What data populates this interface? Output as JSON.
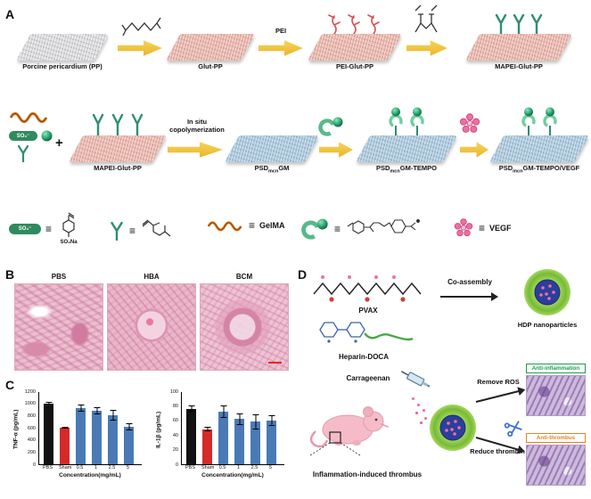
{
  "panels": {
    "A": "A",
    "B": "B",
    "C": "C",
    "D": "D"
  },
  "panelA": {
    "so3_label": "SO₃⁻",
    "plus": "+",
    "row1_steps": [
      {
        "label": "Porcine pericardium (PP)"
      },
      {
        "label": "Glut-PP"
      },
      {
        "label": "PEI-Glut-PP"
      },
      {
        "label": "MAPEI-Glut-PP"
      }
    ],
    "arrow_pei_label": "PEI",
    "insitu_line1": "In situ",
    "insitu_line2": "copolymerization",
    "row2_steps": [
      {
        "label": "MAPEI-Glut-PP"
      },
      {
        "base": "PSD",
        "sub": "mcn",
        "rest": "GM"
      },
      {
        "base": "PSD",
        "sub": "mcn",
        "rest": "GM-TEMPO"
      },
      {
        "base": "PSD",
        "sub": "mcn",
        "rest": "GM-TEMPO/VEGF"
      }
    ],
    "legend": {
      "equiv": "≡",
      "so3na": "SO₃Na",
      "gelma": "GelMA",
      "vegf": "VEGF"
    }
  },
  "panelB": {
    "labels": [
      "PBS",
      "HBA",
      "BCM"
    ]
  },
  "chart_data": [
    {
      "type": "bar",
      "categories": [
        "PBS",
        "Sham",
        "0.5",
        "1",
        "2.5",
        "5"
      ],
      "values": [
        1000,
        600,
        920,
        880,
        800,
        620
      ],
      "errors": [
        25,
        20,
        60,
        55,
        90,
        60
      ],
      "colors": [
        "#111111",
        "#d42a2a",
        "#4a7ab5",
        "#4a7ab5",
        "#4a7ab5",
        "#4a7ab5"
      ],
      "title": "",
      "xlabel": "Concentration(mg/mL)",
      "ylabel": "TNF-α (pg/mL)",
      "ylim": [
        0,
        1200
      ],
      "yticks": [
        0,
        200,
        400,
        600,
        800,
        1000,
        1200
      ]
    },
    {
      "type": "bar",
      "categories": [
        "PBS",
        "Sham",
        "0.5",
        "1",
        "2.5",
        "5"
      ],
      "values": [
        76,
        48,
        72,
        62,
        58,
        60
      ],
      "errors": [
        4,
        3,
        9,
        8,
        10,
        7
      ],
      "colors": [
        "#111111",
        "#d42a2a",
        "#4a7ab5",
        "#4a7ab5",
        "#4a7ab5",
        "#4a7ab5"
      ],
      "title": "",
      "xlabel": "Concentration(mg/mL)",
      "ylabel": "IL-1β (pg/mL)",
      "ylim": [
        0,
        100
      ],
      "yticks": [
        0,
        20,
        40,
        60,
        80,
        100
      ]
    }
  ],
  "panelD": {
    "pvax_label": "PVAX",
    "heparin_label": "Heparin-DOCA",
    "coassembly_label": "Co-assembly",
    "hdp_label": "HDP nanoparticles",
    "carrageenan_label": "Carrageenan",
    "thrombus_label": "Inflammation-induced thrombus",
    "remove_ros_label": "Remove ROS",
    "reduce_thrombin_label": "Reduce thrombin",
    "anti_inflammation_label": "Anti-inflammation",
    "anti_thrombus_label": "Anti-thrombus"
  }
}
